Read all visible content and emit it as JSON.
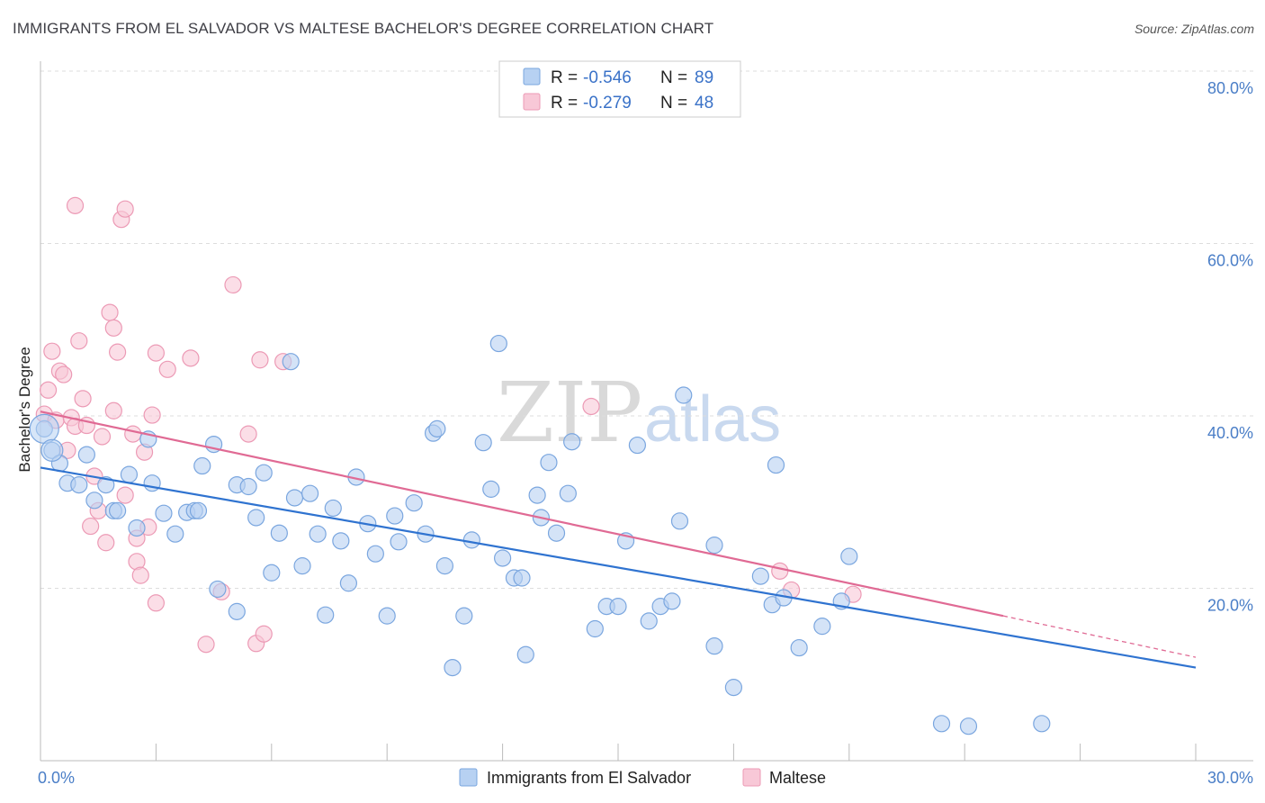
{
  "title": "IMMIGRANTS FROM EL SALVADOR VS MALTESE BACHELOR'S DEGREE CORRELATION CHART",
  "source": "Source: ZipAtlas.com",
  "watermark": {
    "zip": "ZIP",
    "atlas": "atlas"
  },
  "colors": {
    "blue_fill": "#b7d1f2",
    "blue_stroke": "#7aa6df",
    "blue_line": "#2f73d0",
    "pink_fill": "#f8c8d7",
    "pink_stroke": "#ec9ab5",
    "pink_line": "#e06a94",
    "grid": "#dddddd",
    "tick_text": "#4a7ec7"
  },
  "legend": {
    "rows": [
      {
        "r_label": "R =",
        "r_value": "-0.546",
        "n_label": "N =",
        "n_value": "89"
      },
      {
        "r_label": "R =",
        "r_value": "-0.279",
        "n_label": "N =",
        "n_value": "48"
      }
    ]
  },
  "chart_data": {
    "type": "scatter",
    "xlabel": "",
    "ylabel": "Bachelor's Degree",
    "xlim": [
      0,
      30
    ],
    "ylim": [
      0,
      80
    ],
    "x_tick_labels": [
      "0.0%",
      "30.0%"
    ],
    "y_ticks": [
      20,
      40,
      60,
      80
    ],
    "y_tick_labels": [
      "20.0%",
      "40.0%",
      "60.0%",
      "80.0%"
    ],
    "grid": "horizontal dashed",
    "legend_position": "top-center",
    "series": [
      {
        "name": "Immigrants from El Salvador",
        "color": "blue",
        "trend": {
          "x": [
            0,
            30
          ],
          "y": [
            34.0,
            10.8
          ]
        },
        "points": [
          [
            0.1,
            38.5
          ],
          [
            0.3,
            36.0
          ],
          [
            0.5,
            34.5
          ],
          [
            0.7,
            32.2
          ],
          [
            1.0,
            32.0
          ],
          [
            1.2,
            35.5
          ],
          [
            1.4,
            30.2
          ],
          [
            1.7,
            32.0
          ],
          [
            1.9,
            29.0
          ],
          [
            2.0,
            29.0
          ],
          [
            2.5,
            27.0
          ],
          [
            2.3,
            33.2
          ],
          [
            2.8,
            37.3
          ],
          [
            2.9,
            32.2
          ],
          [
            3.2,
            28.7
          ],
          [
            3.5,
            26.3
          ],
          [
            3.8,
            28.8
          ],
          [
            4.0,
            29.0
          ],
          [
            4.1,
            29.0
          ],
          [
            4.2,
            34.2
          ],
          [
            4.5,
            36.7
          ],
          [
            4.6,
            19.9
          ],
          [
            5.1,
            32.0
          ],
          [
            5.1,
            17.3
          ],
          [
            5.4,
            31.8
          ],
          [
            5.6,
            28.2
          ],
          [
            5.8,
            33.4
          ],
          [
            6.0,
            21.8
          ],
          [
            6.2,
            26.4
          ],
          [
            6.5,
            46.3
          ],
          [
            6.6,
            30.5
          ],
          [
            6.8,
            22.6
          ],
          [
            7.0,
            31.0
          ],
          [
            7.2,
            26.3
          ],
          [
            7.4,
            16.9
          ],
          [
            7.6,
            29.3
          ],
          [
            7.8,
            25.5
          ],
          [
            8.0,
            20.6
          ],
          [
            8.2,
            32.9
          ],
          [
            8.5,
            27.5
          ],
          [
            8.7,
            24.0
          ],
          [
            9.0,
            16.8
          ],
          [
            9.2,
            28.4
          ],
          [
            9.3,
            25.4
          ],
          [
            9.7,
            29.9
          ],
          [
            10.0,
            26.3
          ],
          [
            10.2,
            38.0
          ],
          [
            10.3,
            38.5
          ],
          [
            10.5,
            22.6
          ],
          [
            10.7,
            10.8
          ],
          [
            11.0,
            16.8
          ],
          [
            11.2,
            25.6
          ],
          [
            11.5,
            36.9
          ],
          [
            11.7,
            31.5
          ],
          [
            11.9,
            48.4
          ],
          [
            12.0,
            23.5
          ],
          [
            12.3,
            21.2
          ],
          [
            12.5,
            21.2
          ],
          [
            12.6,
            12.3
          ],
          [
            12.9,
            30.8
          ],
          [
            13.0,
            28.2
          ],
          [
            13.2,
            34.6
          ],
          [
            13.4,
            26.4
          ],
          [
            13.7,
            31.0
          ],
          [
            13.8,
            37.0
          ],
          [
            14.4,
            15.3
          ],
          [
            14.7,
            17.9
          ],
          [
            15.0,
            17.9
          ],
          [
            15.2,
            25.5
          ],
          [
            15.5,
            36.6
          ],
          [
            15.8,
            16.2
          ],
          [
            16.1,
            17.9
          ],
          [
            16.4,
            18.5
          ],
          [
            16.6,
            27.8
          ],
          [
            16.7,
            42.4
          ],
          [
            17.5,
            25.0
          ],
          [
            17.5,
            13.3
          ],
          [
            18.0,
            8.5
          ],
          [
            18.7,
            21.4
          ],
          [
            19.0,
            18.1
          ],
          [
            19.1,
            34.3
          ],
          [
            19.3,
            18.9
          ],
          [
            19.7,
            13.1
          ],
          [
            20.3,
            15.6
          ],
          [
            20.8,
            18.5
          ],
          [
            21.0,
            23.7
          ],
          [
            23.4,
            4.3
          ],
          [
            24.1,
            4.0
          ],
          [
            26.0,
            4.3
          ]
        ]
      },
      {
        "name": "Maltese",
        "color": "pink",
        "trend": {
          "x": [
            0,
            25.0
          ],
          "y": [
            40.5,
            16.8
          ]
        },
        "trend_dashed": {
          "x": [
            25.0,
            30
          ],
          "y": [
            16.8,
            12.0
          ]
        },
        "points": [
          [
            0.1,
            40.2
          ],
          [
            0.2,
            43.0
          ],
          [
            0.3,
            47.5
          ],
          [
            0.4,
            39.5
          ],
          [
            0.5,
            45.2
          ],
          [
            0.6,
            44.8
          ],
          [
            0.7,
            36.0
          ],
          [
            0.8,
            39.8
          ],
          [
            0.9,
            38.8
          ],
          [
            0.9,
            64.4
          ],
          [
            1.0,
            48.7
          ],
          [
            1.1,
            42.0
          ],
          [
            1.2,
            38.9
          ],
          [
            1.3,
            27.2
          ],
          [
            1.4,
            33.0
          ],
          [
            1.5,
            29.0
          ],
          [
            1.6,
            37.6
          ],
          [
            1.7,
            25.3
          ],
          [
            1.8,
            52.0
          ],
          [
            1.9,
            40.6
          ],
          [
            1.9,
            50.2
          ],
          [
            2.0,
            47.4
          ],
          [
            2.1,
            62.8
          ],
          [
            2.2,
            64.0
          ],
          [
            2.2,
            30.8
          ],
          [
            2.4,
            37.9
          ],
          [
            2.5,
            23.1
          ],
          [
            2.5,
            25.8
          ],
          [
            2.6,
            21.5
          ],
          [
            2.7,
            35.8
          ],
          [
            2.8,
            27.1
          ],
          [
            2.9,
            40.1
          ],
          [
            3.0,
            47.3
          ],
          [
            3.0,
            18.3
          ],
          [
            3.3,
            45.4
          ],
          [
            3.9,
            46.7
          ],
          [
            4.3,
            13.5
          ],
          [
            4.7,
            19.6
          ],
          [
            5.0,
            55.2
          ],
          [
            5.4,
            37.9
          ],
          [
            5.6,
            13.6
          ],
          [
            5.7,
            46.5
          ],
          [
            5.8,
            14.7
          ],
          [
            6.3,
            46.3
          ],
          [
            14.3,
            41.1
          ],
          [
            19.2,
            22.0
          ],
          [
            19.5,
            19.8
          ],
          [
            21.1,
            19.3
          ]
        ]
      }
    ]
  }
}
